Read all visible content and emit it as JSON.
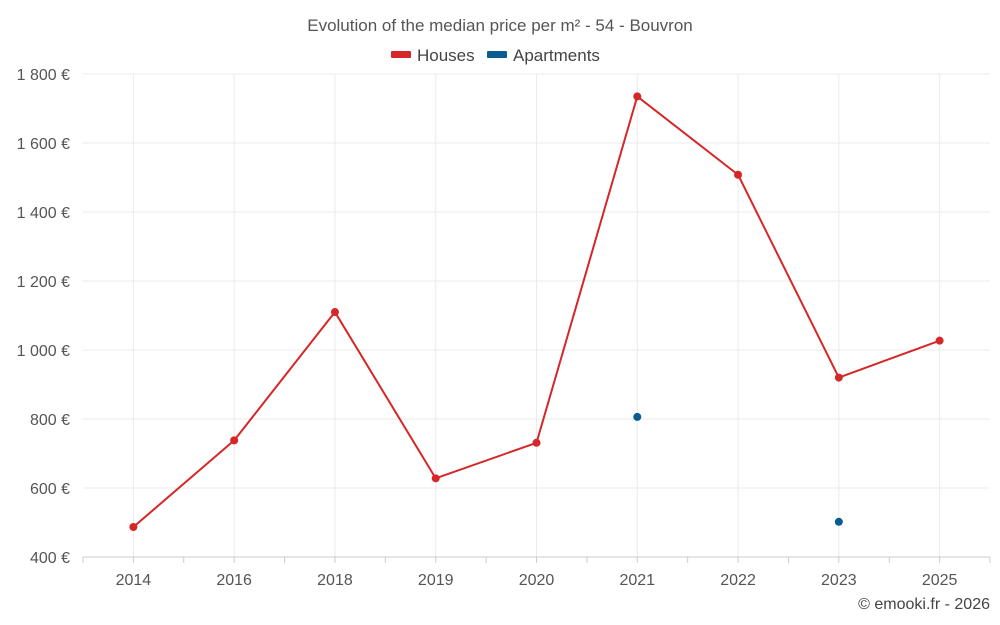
{
  "chart_data": {
    "type": "line",
    "title": "Evolution of the median price per m² - 54 - Bouvron",
    "categories": [
      "2014",
      "2016",
      "2018",
      "2019",
      "2020",
      "2021",
      "2022",
      "2023",
      "2025"
    ],
    "series": [
      {
        "name": "Houses",
        "color": "#d62728",
        "values": [
          487,
          738,
          1110,
          628,
          731,
          1735,
          1508,
          920,
          1027
        ]
      },
      {
        "name": "Apartments",
        "color": "#0b5d91",
        "values": [
          null,
          null,
          null,
          null,
          null,
          806,
          null,
          502,
          null
        ]
      }
    ],
    "ylim": [
      400,
      1800
    ],
    "yticks": [
      400,
      600,
      800,
      1000,
      1200,
      1400,
      1600,
      1800
    ],
    "ytick_labels": [
      "400 €",
      "600 €",
      "800 €",
      "1 000 €",
      "1 200 €",
      "1 400 €",
      "1 600 €",
      "1 800 €"
    ],
    "xlabel": "",
    "ylabel": "",
    "grid": true,
    "legend_position": "top-center"
  },
  "credit": "© emooki.fr - 2026"
}
